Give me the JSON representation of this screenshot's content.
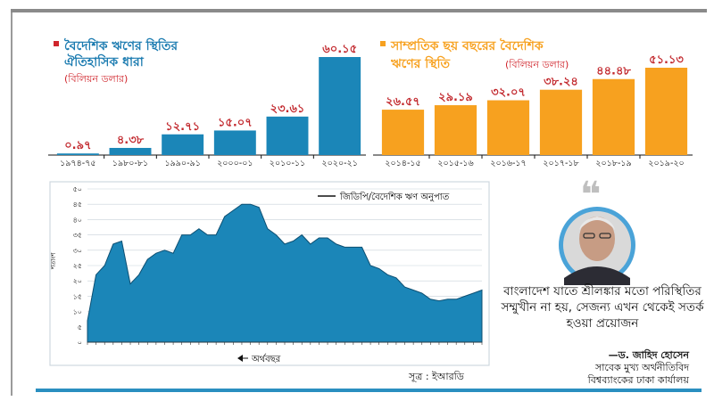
{
  "colors": {
    "blue": "#1b86b8",
    "orange": "#f7a11f",
    "title_blue": "#1b7bb0",
    "subtitle_red": "#d0252c",
    "area_fill": "#1b86b8"
  },
  "source": "সূত্র : ইআরডি",
  "quote": "বাংলাদেশ যাতে শ্রীলঙ্কার মতো পরিস্থিতির সম্মুখীন না হয়, সেজন্য এখন থেকেই সতর্ক হওয়া প্রয়োজন",
  "quote_icon": "quote-mark-icon",
  "author": {
    "name": "—ড. জাহিদ হোসেন",
    "title": "সাবেক মুখ্য অর্থনীতিবিদ",
    "org": "বিশ্বব্যাংকের ঢাকা কার্যালয়"
  },
  "chart_data": [
    {
      "type": "bar",
      "title": "বৈদেশিক ঋণের স্থিতির ঐতিহাসিক ধারা",
      "subtitle": "(বিলিয়ন ডলার)",
      "categories": [
        "১৯৭৪-৭৫",
        "১৯৮০-৮১",
        "১৯৯০-৯১",
        "২০০০-০১",
        "২০১০-১১",
        "২০২০-২১"
      ],
      "values": [
        0.97,
        4.38,
        12.71,
        15.07,
        23.61,
        60.15
      ],
      "labels": [
        "০.৯৭",
        "৪.৩৮",
        "১২.৭১",
        "১৫.০৭",
        "২৩.৬১",
        "৬০.১৫"
      ],
      "ylim": [
        0,
        60.15
      ]
    },
    {
      "type": "bar",
      "title": "সাম্প্রতিক ছয় বছরের বৈদেশিক ঋণের স্থিতি",
      "subtitle": "(বিলিয়ন ডলার)",
      "categories": [
        "২০১৪-১৫",
        "২০১৫-১৬",
        "২০১৬-১৭",
        "২০১৭-১৮",
        "২০১৮-১৯",
        "২০১৯-২০"
      ],
      "values": [
        26.57,
        29.19,
        32.07,
        38.24,
        44.48,
        51.13
      ],
      "labels": [
        "২৬.৫৭",
        "২৯.১৯",
        "৩২.০৭",
        "৩৮.২৪",
        "৪৪.৪৮",
        "৫১.১৩"
      ],
      "ylim": [
        0,
        51.13
      ]
    },
    {
      "type": "area",
      "legend": "জিডিপি/বৈদেশিক ঋণ অনুপাত",
      "ylabel": "শতাংশ",
      "xlabel": "অর্থবছর",
      "ylim": [
        0,
        50
      ],
      "yticks": [
        0,
        5,
        10,
        15,
        20,
        25,
        30,
        35,
        40,
        45,
        50
      ],
      "ytick_labels": [
        "০",
        "৫",
        "১০",
        "১৫",
        "২০",
        "২৫",
        "৩০",
        "৩৫",
        "৪০",
        "৪৫",
        "৫০"
      ],
      "values": [
        7,
        22,
        25,
        32,
        33,
        19,
        22,
        27,
        29,
        30,
        29,
        35,
        35,
        37,
        35,
        35,
        41,
        43,
        45,
        45,
        44,
        37,
        35,
        32,
        33,
        35,
        32,
        34,
        34,
        32,
        31,
        31,
        31,
        25,
        24,
        22,
        21,
        18,
        17,
        16,
        14,
        13.5,
        14,
        14,
        15,
        16,
        17
      ]
    }
  ]
}
